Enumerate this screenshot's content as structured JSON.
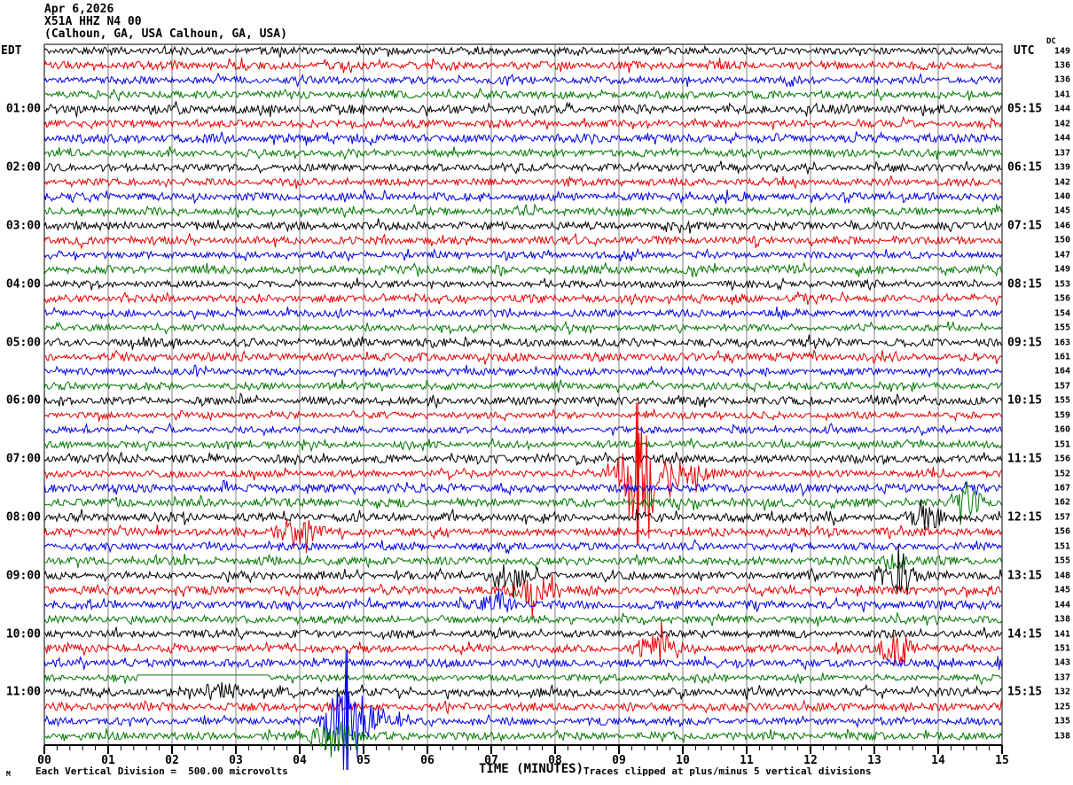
{
  "header": {
    "date": "Apr 6,2026",
    "station": "X51A HHZ N4 00",
    "location": "(Calhoun, GA, USA Calhoun, GA, USA)"
  },
  "axes": {
    "left_tz": "EDT",
    "right_tz": "UTC",
    "dc_label": "DC"
  },
  "footer": {
    "scale_note": "Each Vertical Division =  500.00 microvolts",
    "time_axis_label": "TIME (MINUTES)",
    "clip_note": "Traces clipped at plus/minus 5 vertical divisions",
    "watermark": "M"
  },
  "chart_data": {
    "type": "seismogram-helicorder",
    "title": "X51A HHZ N4 00 helicorder, Apr 6,2026, Calhoun, GA, USA",
    "xlabel": "TIME (MINUTES)",
    "x_range": [
      0,
      15
    ],
    "minutes_per_line": 15,
    "x_ticks": [
      "00",
      "01",
      "02",
      "03",
      "04",
      "05",
      "06",
      "07",
      "08",
      "09",
      "10",
      "11",
      "12",
      "13",
      "14",
      "15"
    ],
    "minor_ticks_per_minute": 5,
    "grid": true,
    "clip_divisions": 5,
    "microvolts_per_division": 500.0,
    "trace_colors": [
      "#000000",
      "#e60000",
      "#0000e6",
      "#007700"
    ],
    "grid_color": "#808080",
    "rows": [
      {
        "c": 0,
        "dc": 149
      },
      {
        "c": 1,
        "dc": 136
      },
      {
        "c": 2,
        "dc": 136
      },
      {
        "c": 3,
        "dc": 141
      },
      {
        "c": 0,
        "dc": 144,
        "l": "01:00",
        "r": "05:15"
      },
      {
        "c": 1,
        "dc": 142
      },
      {
        "c": 2,
        "dc": 144
      },
      {
        "c": 3,
        "dc": 137
      },
      {
        "c": 0,
        "dc": 139,
        "l": "02:00",
        "r": "06:15"
      },
      {
        "c": 1,
        "dc": 142
      },
      {
        "c": 2,
        "dc": 140
      },
      {
        "c": 3,
        "dc": 145
      },
      {
        "c": 0,
        "dc": 146,
        "l": "03:00",
        "r": "07:15"
      },
      {
        "c": 1,
        "dc": 150
      },
      {
        "c": 2,
        "dc": 147
      },
      {
        "c": 3,
        "dc": 149
      },
      {
        "c": 0,
        "dc": 153,
        "l": "04:00",
        "r": "08:15"
      },
      {
        "c": 1,
        "dc": 156
      },
      {
        "c": 2,
        "dc": 154
      },
      {
        "c": 3,
        "dc": 155
      },
      {
        "c": 0,
        "dc": 163,
        "l": "05:00",
        "r": "09:15"
      },
      {
        "c": 1,
        "dc": 161
      },
      {
        "c": 2,
        "dc": 164
      },
      {
        "c": 3,
        "dc": 157
      },
      {
        "c": 0,
        "dc": 155,
        "l": "06:00",
        "r": "10:15"
      },
      {
        "c": 1,
        "dc": 159
      },
      {
        "c": 2,
        "dc": 160
      },
      {
        "c": 3,
        "dc": 151
      },
      {
        "c": 0,
        "dc": 156,
        "l": "07:00",
        "r": "11:15",
        "na": 1.25
      },
      {
        "c": 1,
        "dc": 152,
        "ev": [
          {
            "m": 9.28,
            "w": 0.3,
            "a": 55,
            "spike": 1
          },
          {
            "m": 9.85,
            "w": 0.55,
            "a": 13
          }
        ]
      },
      {
        "c": 2,
        "dc": 167
      },
      {
        "c": 3,
        "dc": 162,
        "ev": [
          {
            "m": 14.5,
            "w": 0.22,
            "a": 14
          }
        ]
      },
      {
        "c": 0,
        "dc": 157,
        "l": "08:00",
        "r": "12:15",
        "na": 1.2,
        "ev": [
          {
            "m": 13.8,
            "w": 0.25,
            "a": 10
          }
        ]
      },
      {
        "c": 1,
        "dc": 156,
        "ev": [
          {
            "m": 3.95,
            "w": 0.28,
            "a": 16
          }
        ]
      },
      {
        "c": 2,
        "dc": 151
      },
      {
        "c": 3,
        "dc": 155,
        "ev": [
          {
            "m": 13.3,
            "w": 0.15,
            "a": 9
          }
        ]
      },
      {
        "c": 0,
        "dc": 148,
        "l": "09:00",
        "r": "13:15",
        "ev": [
          {
            "m": 7.25,
            "w": 0.3,
            "a": 13
          },
          {
            "m": 13.35,
            "w": 0.28,
            "a": 17
          }
        ]
      },
      {
        "c": 1,
        "dc": 145,
        "ev": [
          {
            "m": 7.67,
            "w": 0.3,
            "a": 15
          }
        ]
      },
      {
        "c": 2,
        "dc": 144,
        "ev": [
          {
            "m": 7.1,
            "w": 0.22,
            "a": 9
          }
        ]
      },
      {
        "c": 3,
        "dc": 138
      },
      {
        "c": 0,
        "dc": 141,
        "l": "10:00",
        "r": "14:15"
      },
      {
        "c": 1,
        "dc": 151,
        "ev": [
          {
            "m": 9.6,
            "w": 0.3,
            "a": 15
          },
          {
            "m": 13.35,
            "w": 0.22,
            "a": 22
          }
        ]
      },
      {
        "c": 2,
        "dc": 143
      },
      {
        "c": 3,
        "dc": 137,
        "ev": [
          {
            "flat": [
              1.45,
              3.5
            ],
            "off": -3
          }
        ]
      },
      {
        "c": 0,
        "dc": 132,
        "l": "11:00",
        "r": "15:15",
        "ev": [
          {
            "m": 2.75,
            "w": 0.22,
            "a": 11
          }
        ]
      },
      {
        "c": 1,
        "dc": 125
      },
      {
        "c": 2,
        "dc": 135,
        "ev": [
          {
            "m": 4.73,
            "w": 0.28,
            "a": 60,
            "spike": 1
          },
          {
            "m": 5.05,
            "w": 0.35,
            "a": 16
          }
        ]
      },
      {
        "c": 3,
        "dc": 138,
        "ev": [
          {
            "m": 4.55,
            "w": 0.3,
            "a": 15
          }
        ]
      }
    ]
  }
}
